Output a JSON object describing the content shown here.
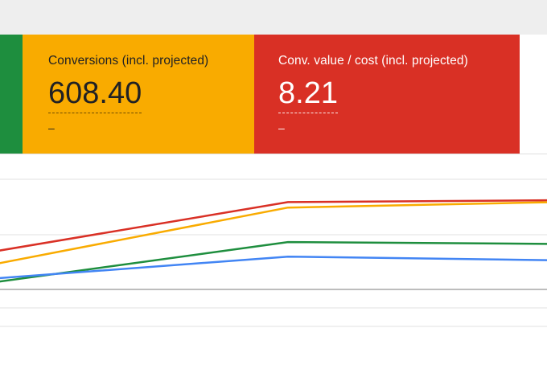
{
  "colors": {
    "green": "#1e8e3e",
    "yellow": "#f9ab00",
    "red": "#d93025",
    "blue": "#4285f4",
    "text_dark": "#202124",
    "text_light": "#ffffff"
  },
  "scorecards": [
    {
      "label": "Conversions (incl. projected)",
      "value": "608.40",
      "sub": "–"
    },
    {
      "label": "Conv. value / cost (incl. projected)",
      "value": "8.21",
      "sub": "–"
    }
  ],
  "chart_data": {
    "type": "line",
    "title": "",
    "xlabel": "",
    "ylabel": "",
    "x": [
      0,
      1,
      2
    ],
    "ylim": [
      0,
      100
    ],
    "grid": true,
    "series": [
      {
        "color": "#d93025",
        "values": [
          60,
          87,
          88
        ]
      },
      {
        "color": "#f9ab00",
        "values": [
          53,
          84,
          87
        ]
      },
      {
        "color": "#1e8e3e",
        "values": [
          43,
          65,
          64
        ]
      },
      {
        "color": "#4285f4",
        "values": [
          45,
          57,
          55
        ]
      }
    ]
  }
}
